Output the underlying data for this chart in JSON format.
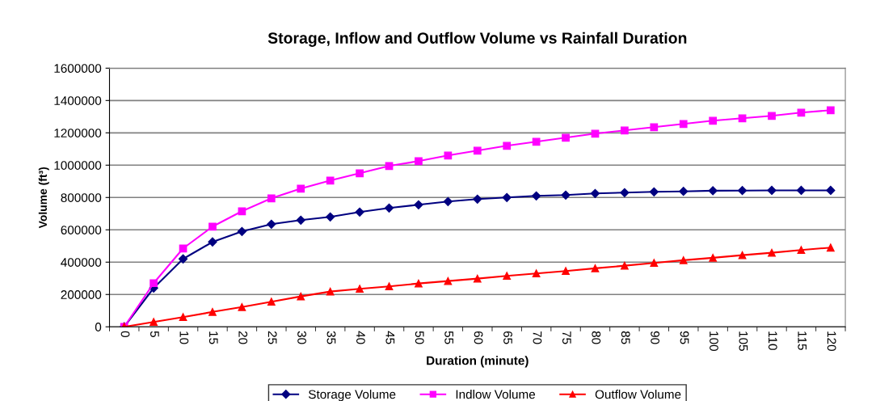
{
  "chart_data": {
    "type": "line",
    "title": "Storage, Inflow and Outflow Volume vs Rainfall Duration",
    "xlabel": "Duration (minute)",
    "ylabel": "Volume (ft³)",
    "categories": [
      "0",
      "5",
      "10",
      "15",
      "20",
      "25",
      "30",
      "35",
      "40",
      "45",
      "50",
      "55",
      "60",
      "65",
      "70",
      "75",
      "80",
      "85",
      "90",
      "95",
      "100",
      "105",
      "110",
      "115",
      "120"
    ],
    "series": [
      {
        "name": "Storage Volume",
        "color": "#000080",
        "marker": "diamond",
        "values": [
          0,
          240000,
          420000,
          525000,
          590000,
          635000,
          660000,
          680000,
          710000,
          735000,
          755000,
          775000,
          790000,
          800000,
          810000,
          815000,
          825000,
          830000,
          835000,
          838000,
          842000,
          843000,
          844000,
          844000,
          844000
        ]
      },
      {
        "name": "Indlow Volume",
        "color": "#ff00ff",
        "marker": "square",
        "values": [
          0,
          270000,
          485000,
          620000,
          715000,
          795000,
          855000,
          905000,
          950000,
          995000,
          1025000,
          1060000,
          1090000,
          1120000,
          1145000,
          1170000,
          1195000,
          1215000,
          1235000,
          1255000,
          1275000,
          1290000,
          1305000,
          1325000,
          1340000
        ]
      },
      {
        "name": "Outflow Volume",
        "color": "#ff0000",
        "marker": "triangle",
        "values": [
          0,
          30000,
          60000,
          92000,
          122000,
          155000,
          188000,
          218000,
          235000,
          250000,
          268000,
          283000,
          298000,
          315000,
          330000,
          345000,
          362000,
          378000,
          395000,
          412000,
          427000,
          443000,
          458000,
          475000,
          490000
        ]
      }
    ],
    "ylim": [
      0,
      1600000
    ],
    "yticks": [
      0,
      200000,
      400000,
      600000,
      800000,
      1000000,
      1200000,
      1400000,
      1600000
    ],
    "grid": "y",
    "legend": "bottom",
    "line_style": "solid"
  }
}
